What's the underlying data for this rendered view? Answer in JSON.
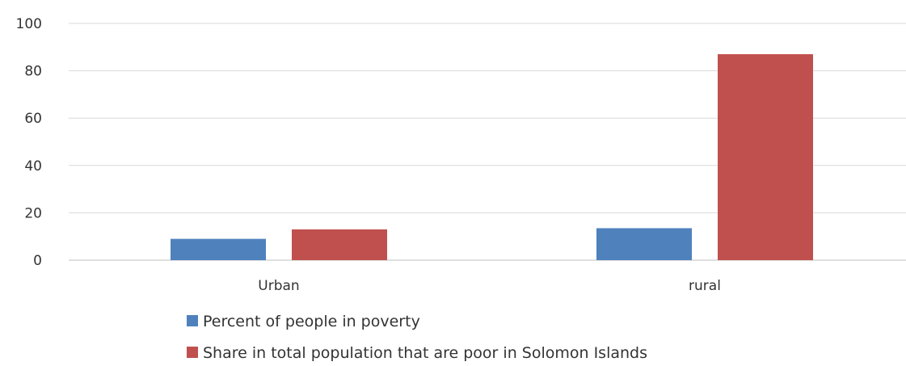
{
  "chart_data": {
    "type": "bar",
    "categories": [
      "Urban",
      "rural"
    ],
    "series": [
      {
        "name": "Percent of people in poverty",
        "values": [
          9,
          13.5
        ],
        "color": "#4F81BD"
      },
      {
        "name": "Share in total population that are poor in Solomon Islands",
        "values": [
          13,
          87
        ],
        "color": "#C0504D"
      }
    ],
    "title": "",
    "xlabel": "",
    "ylabel": "",
    "ylim": [
      0,
      100
    ],
    "yticks": [
      0,
      20,
      40,
      60,
      80,
      100
    ],
    "grid": true,
    "legend_position": "bottom"
  }
}
